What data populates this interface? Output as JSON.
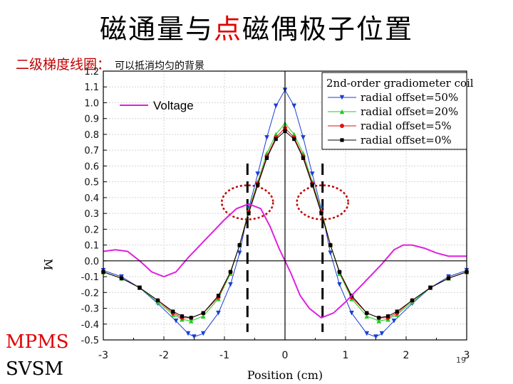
{
  "slide": {
    "title_part1": "磁通量与",
    "title_highlight": "点",
    "title_part2": "磁偶极子位置",
    "subtitle": "二级梯度线圈：",
    "subtitle_note": "可以抵消均匀的背景",
    "bottom_label_1": "MPMS",
    "bottom_label_2": "SVSM",
    "page_number": "19",
    "colors": {
      "title": "#000000",
      "highlight": "#e00000",
      "subtitle": "#c00000",
      "mpms": "#e00000"
    }
  },
  "chart_data": {
    "type": "line",
    "xlabel": "Position (cm)",
    "ylabel": "M",
    "xlim": [
      -3,
      3
    ],
    "ylim": [
      -0.5,
      1.2
    ],
    "xticks": [
      "-3",
      "-2",
      "-1",
      "0",
      "1",
      "2",
      "3"
    ],
    "yticks": [
      "1.2",
      "1.1",
      "1.0",
      "0.9",
      "0.8",
      "0.7",
      "0.6",
      "0.5",
      "0.4",
      "0.3",
      "0.2",
      "0.1",
      "0.0",
      "-0.1",
      "-0.2",
      "-0.3",
      "-0.4",
      "-0.5"
    ],
    "legend_title": "2nd-order gradiometer coil",
    "legend_placement": "top-right",
    "voltage_label": "Voltage",
    "series": [
      {
        "name": "radial offset=50%",
        "color": "#1a3fd6",
        "marker": "triangle-down",
        "points": [
          [
            -3,
            -0.06
          ],
          [
            -2.7,
            -0.1
          ],
          [
            -2.4,
            -0.17
          ],
          [
            -2.1,
            -0.27
          ],
          [
            -1.8,
            -0.38
          ],
          [
            -1.6,
            -0.46
          ],
          [
            -1.5,
            -0.48
          ],
          [
            -1.35,
            -0.46
          ],
          [
            -1.1,
            -0.33
          ],
          [
            -0.9,
            -0.15
          ],
          [
            -0.75,
            0.05
          ],
          [
            -0.6,
            0.33
          ],
          [
            -0.45,
            0.55
          ],
          [
            -0.3,
            0.78
          ],
          [
            -0.15,
            0.98
          ],
          [
            0,
            1.08
          ],
          [
            0.15,
            0.98
          ],
          [
            0.3,
            0.78
          ],
          [
            0.45,
            0.55
          ],
          [
            0.6,
            0.33
          ],
          [
            0.75,
            0.05
          ],
          [
            0.9,
            -0.15
          ],
          [
            1.1,
            -0.33
          ],
          [
            1.35,
            -0.46
          ],
          [
            1.5,
            -0.48
          ],
          [
            1.6,
            -0.46
          ],
          [
            1.8,
            -0.38
          ],
          [
            2.1,
            -0.27
          ],
          [
            2.4,
            -0.17
          ],
          [
            2.7,
            -0.1
          ],
          [
            3,
            -0.06
          ]
        ]
      },
      {
        "name": "radial offset=20%",
        "color": "#22cc22",
        "marker": "triangle-up",
        "points": [
          [
            -3,
            -0.07
          ],
          [
            -2.7,
            -0.11
          ],
          [
            -2.4,
            -0.17
          ],
          [
            -2.1,
            -0.26
          ],
          [
            -1.85,
            -0.34
          ],
          [
            -1.7,
            -0.37
          ],
          [
            -1.55,
            -0.38
          ],
          [
            -1.35,
            -0.35
          ],
          [
            -1.1,
            -0.24
          ],
          [
            -0.9,
            -0.08
          ],
          [
            -0.75,
            0.1
          ],
          [
            -0.6,
            0.32
          ],
          [
            -0.45,
            0.5
          ],
          [
            -0.3,
            0.68
          ],
          [
            -0.15,
            0.8
          ],
          [
            0,
            0.87
          ],
          [
            0.15,
            0.8
          ],
          [
            0.3,
            0.68
          ],
          [
            0.45,
            0.5
          ],
          [
            0.6,
            0.32
          ],
          [
            0.75,
            0.1
          ],
          [
            0.9,
            -0.08
          ],
          [
            1.1,
            -0.24
          ],
          [
            1.35,
            -0.35
          ],
          [
            1.55,
            -0.38
          ],
          [
            1.7,
            -0.37
          ],
          [
            1.85,
            -0.34
          ],
          [
            2.1,
            -0.26
          ],
          [
            2.4,
            -0.17
          ],
          [
            2.7,
            -0.11
          ],
          [
            3,
            -0.07
          ]
        ]
      },
      {
        "name": "radial offset=5%",
        "color": "#e01010",
        "marker": "circle",
        "points": [
          [
            -3,
            -0.07
          ],
          [
            -2.7,
            -0.11
          ],
          [
            -2.4,
            -0.17
          ],
          [
            -2.1,
            -0.25
          ],
          [
            -1.85,
            -0.33
          ],
          [
            -1.7,
            -0.36
          ],
          [
            -1.55,
            -0.36
          ],
          [
            -1.35,
            -0.33
          ],
          [
            -1.1,
            -0.23
          ],
          [
            -0.9,
            -0.07
          ],
          [
            -0.75,
            0.1
          ],
          [
            -0.6,
            0.31
          ],
          [
            -0.45,
            0.49
          ],
          [
            -0.3,
            0.66
          ],
          [
            -0.15,
            0.78
          ],
          [
            0,
            0.84
          ],
          [
            0.15,
            0.78
          ],
          [
            0.3,
            0.66
          ],
          [
            0.45,
            0.49
          ],
          [
            0.6,
            0.31
          ],
          [
            0.75,
            0.1
          ],
          [
            0.9,
            -0.07
          ],
          [
            1.1,
            -0.23
          ],
          [
            1.35,
            -0.33
          ],
          [
            1.55,
            -0.36
          ],
          [
            1.7,
            -0.36
          ],
          [
            1.85,
            -0.33
          ],
          [
            2.1,
            -0.25
          ],
          [
            2.4,
            -0.17
          ],
          [
            2.7,
            -0.11
          ],
          [
            3,
            -0.07
          ]
        ]
      },
      {
        "name": "radial offset=0%",
        "color": "#000000",
        "marker": "square",
        "points": [
          [
            -3,
            -0.07
          ],
          [
            -2.7,
            -0.11
          ],
          [
            -2.4,
            -0.17
          ],
          [
            -2.1,
            -0.25
          ],
          [
            -1.85,
            -0.32
          ],
          [
            -1.7,
            -0.35
          ],
          [
            -1.55,
            -0.36
          ],
          [
            -1.35,
            -0.33
          ],
          [
            -1.1,
            -0.22
          ],
          [
            -0.9,
            -0.07
          ],
          [
            -0.75,
            0.1
          ],
          [
            -0.6,
            0.3
          ],
          [
            -0.45,
            0.48
          ],
          [
            -0.3,
            0.65
          ],
          [
            -0.15,
            0.77
          ],
          [
            0,
            0.82
          ],
          [
            0.15,
            0.77
          ],
          [
            0.3,
            0.65
          ],
          [
            0.45,
            0.48
          ],
          [
            0.6,
            0.3
          ],
          [
            0.75,
            0.1
          ],
          [
            0.9,
            -0.07
          ],
          [
            1.1,
            -0.22
          ],
          [
            1.35,
            -0.33
          ],
          [
            1.55,
            -0.36
          ],
          [
            1.7,
            -0.35
          ],
          [
            1.85,
            -0.32
          ],
          [
            2.1,
            -0.25
          ],
          [
            2.4,
            -0.17
          ],
          [
            2.7,
            -0.11
          ],
          [
            3,
            -0.07
          ]
        ]
      },
      {
        "name": "Voltage",
        "color": "#e020e0",
        "marker": "none",
        "points": [
          [
            -3,
            0.06
          ],
          [
            -2.8,
            0.07
          ],
          [
            -2.6,
            0.06
          ],
          [
            -2.4,
            0.0
          ],
          [
            -2.2,
            -0.07
          ],
          [
            -2.0,
            -0.1
          ],
          [
            -1.8,
            -0.07
          ],
          [
            -1.6,
            0.02
          ],
          [
            -1.4,
            0.1
          ],
          [
            -1.2,
            0.18
          ],
          [
            -1.0,
            0.26
          ],
          [
            -0.8,
            0.33
          ],
          [
            -0.6,
            0.36
          ],
          [
            -0.4,
            0.33
          ],
          [
            -0.25,
            0.22
          ],
          [
            -0.1,
            0.08
          ],
          [
            0,
            0.0
          ],
          [
            0.1,
            -0.08
          ],
          [
            0.25,
            -0.22
          ],
          [
            0.4,
            -0.3
          ],
          [
            0.6,
            -0.36
          ],
          [
            0.8,
            -0.33
          ],
          [
            1.0,
            -0.26
          ],
          [
            1.2,
            -0.18
          ],
          [
            1.4,
            -0.1
          ],
          [
            1.6,
            -0.02
          ],
          [
            1.8,
            0.07
          ],
          [
            1.95,
            0.1
          ],
          [
            2.1,
            0.1
          ],
          [
            2.3,
            0.08
          ],
          [
            2.5,
            0.05
          ],
          [
            2.7,
            0.03
          ],
          [
            3,
            0.03
          ]
        ]
      }
    ],
    "marker_lines_x": [
      -0.62,
      0.62
    ],
    "highlight_circles_x": [
      -0.62,
      0.62
    ]
  }
}
